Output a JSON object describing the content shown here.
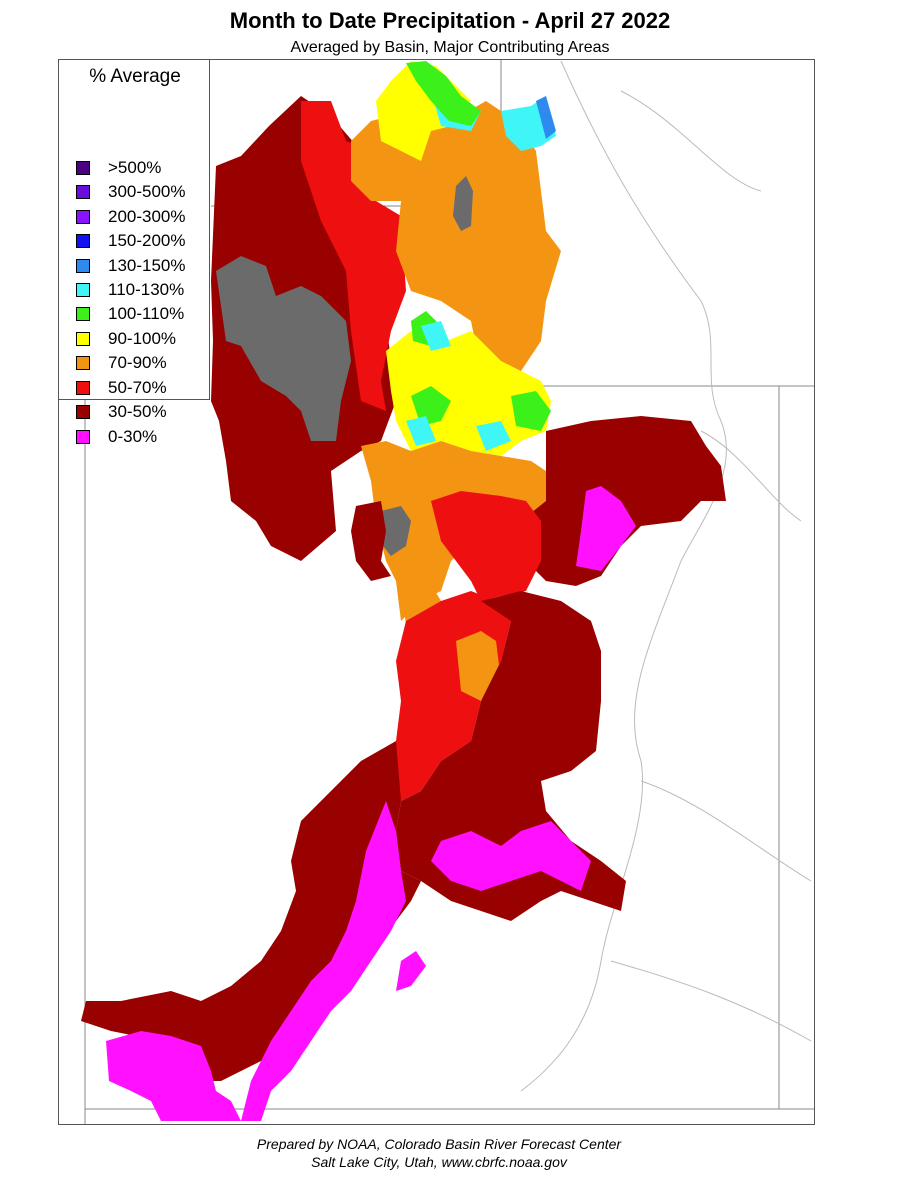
{
  "title": "Month to Date Precipitation - April 27 2022",
  "subtitle": "Averaged by Basin, Major Contributing Areas",
  "legend": {
    "title": "% Average",
    "items": [
      {
        "label": ">500%",
        "color": "#4b0082"
      },
      {
        "label": "300-500%",
        "color": "#6a0dd8"
      },
      {
        "label": "200-300%",
        "color": "#8a12ff"
      },
      {
        "label": "150-200%",
        "color": "#1212ee"
      },
      {
        "label": "130-150%",
        "color": "#2f8af0"
      },
      {
        "label": "110-130%",
        "color": "#3ff5f5"
      },
      {
        "label": "100-110%",
        "color": "#3cf01a"
      },
      {
        "label": "90-100%",
        "color": "#ffff00"
      },
      {
        "label": "70-90%",
        "color": "#f39512"
      },
      {
        "label": "50-70%",
        "color": "#ee1010"
      },
      {
        "label": "30-50%",
        "color": "#990000"
      },
      {
        "label": "0-30%",
        "color": "#ff10ff"
      }
    ]
  },
  "map_colors": {
    "lake": "#6b6b6b",
    "boundary": "#888888",
    "river": "#bbbbbb"
  },
  "footer": {
    "line1": "Prepared by NOAA, Colorado Basin River Forecast Center",
    "line2": "Salt Lake City, Utah, www.cbrfc.noaa.gov"
  }
}
